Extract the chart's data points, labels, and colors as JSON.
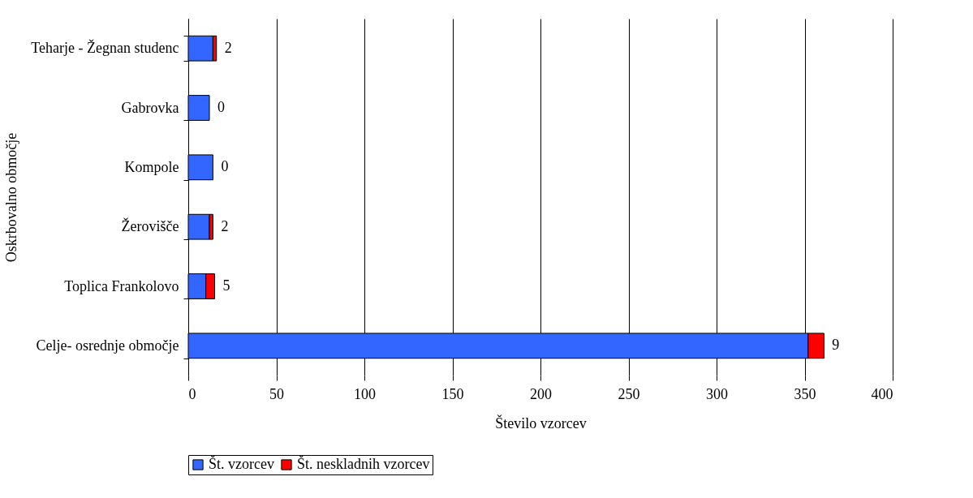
{
  "chart_data": {
    "type": "bar",
    "orientation": "horizontal",
    "stacked": true,
    "xlabel": "Število vzorcev",
    "ylabel": "Oskrbovalno območje",
    "categories": [
      "Teharje - Žegnan studenc",
      "Gabrovka",
      "Kompole",
      "Žerovišče",
      "Toplica Frankolovo",
      "Celje- osrednje območje"
    ],
    "series": [
      {
        "name": "Št. vzorcev",
        "color": "#3366ff",
        "values": [
          14,
          12,
          14,
          12,
          10,
          352
        ]
      },
      {
        "name": "Št. neskladnih vzorcev",
        "color": "#ff0000",
        "values": [
          2,
          0,
          0,
          2,
          5,
          9
        ],
        "value_labels": [
          "2",
          "0",
          "0",
          "2",
          "5",
          "9"
        ]
      }
    ],
    "xlim": [
      0,
      400
    ],
    "xticks": [
      0,
      50,
      100,
      150,
      200,
      250,
      300,
      350,
      400
    ],
    "grid": "x",
    "legend": "bottom"
  }
}
